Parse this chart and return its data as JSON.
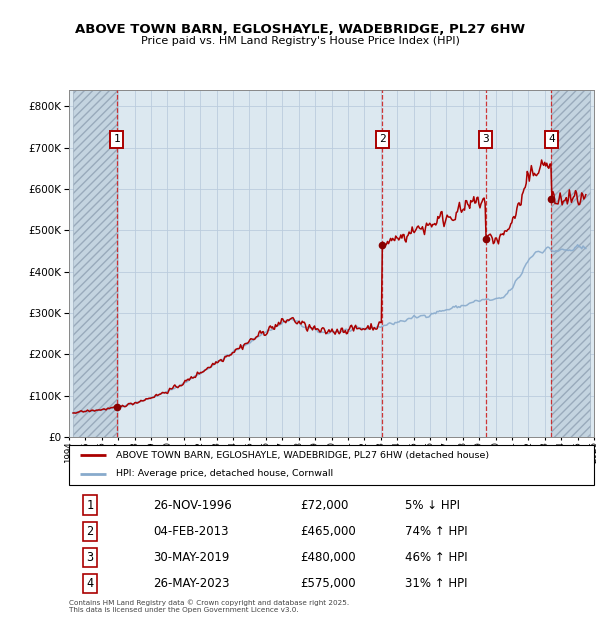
{
  "title": "ABOVE TOWN BARN, EGLOSHAYLE, WADEBRIDGE, PL27 6HW",
  "subtitle": "Price paid vs. HM Land Registry's House Price Index (HPI)",
  "ytick_values": [
    0,
    100000,
    200000,
    300000,
    400000,
    500000,
    600000,
    700000,
    800000
  ],
  "ylim": [
    0,
    840000
  ],
  "xlim_start": 1994.25,
  "xlim_end": 2025.75,
  "sale_dates": [
    1996.91,
    2013.09,
    2019.41,
    2023.4
  ],
  "sale_prices": [
    72000,
    465000,
    480000,
    575000
  ],
  "sale_labels": [
    "1",
    "2",
    "3",
    "4"
  ],
  "sale_date_strings": [
    "26-NOV-1996",
    "04-FEB-2013",
    "30-MAY-2019",
    "26-MAY-2023"
  ],
  "sale_price_strings": [
    "£72,000",
    "£465,000",
    "£480,000",
    "£575,000"
  ],
  "sale_pct_strings": [
    "5% ↓ HPI",
    "74% ↑ HPI",
    "46% ↑ HPI",
    "31% ↑ HPI"
  ],
  "legend_line1": "ABOVE TOWN BARN, EGLOSHAYLE, WADEBRIDGE, PL27 6HW (detached house)",
  "legend_line2": "HPI: Average price, detached house, Cornwall",
  "footnote1": "Contains HM Land Registry data © Crown copyright and database right 2025.",
  "footnote2": "This data is licensed under the Open Government Licence v3.0.",
  "red_line_color": "#aa0000",
  "blue_line_color": "#88aacc",
  "dashed_line_color": "#cc2222",
  "grid_color": "#bbccdd",
  "plot_bg": "#dce8f0",
  "hatch_region_color": "#c4d4e0"
}
